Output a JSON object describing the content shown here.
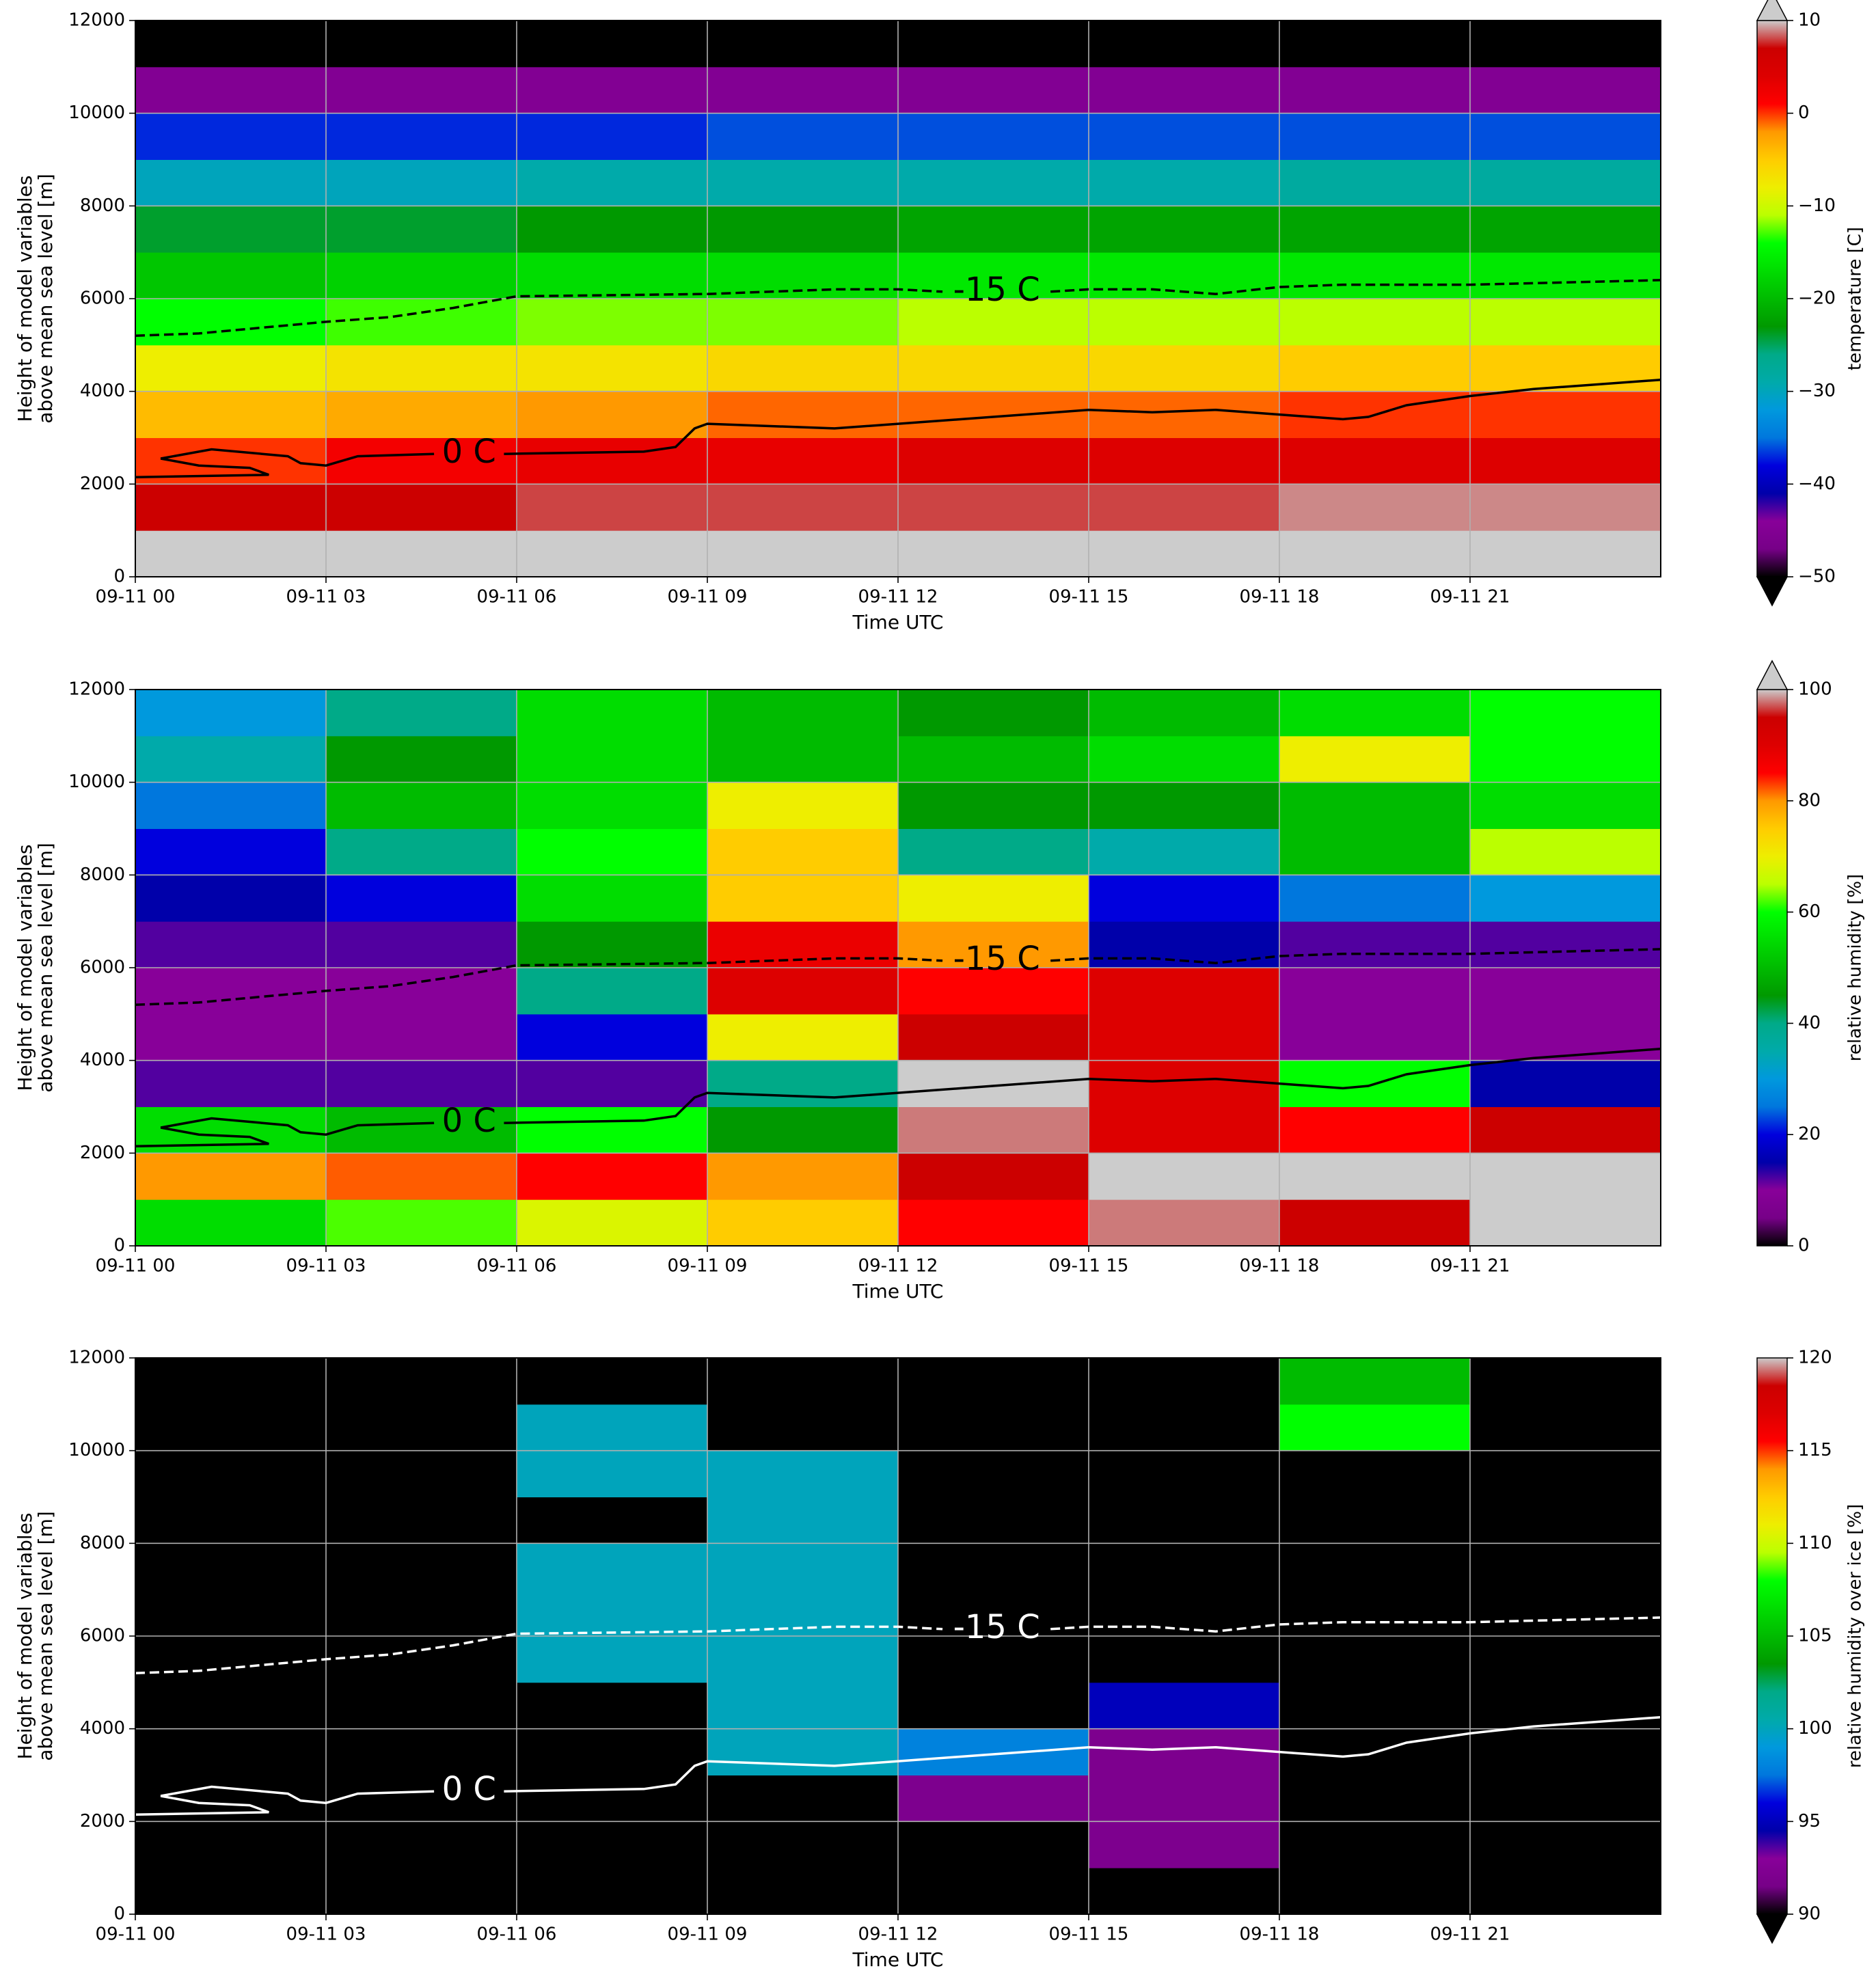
{
  "chart_data": [
    {
      "type": "heatmap",
      "xlabel": "Time UTC",
      "ylabel": [
        "Height of model variables",
        "above mean sea level [m]"
      ],
      "colorbar_label": "temperature [C]",
      "cmap": "nipy_spectral",
      "extend": "both",
      "clim": [
        -50,
        10
      ],
      "cticks": [
        {
          "value": -50,
          "label": "−50"
        },
        {
          "value": -40,
          "label": "−40"
        },
        {
          "value": -30,
          "label": "−30"
        },
        {
          "value": -20,
          "label": "−20"
        },
        {
          "value": -10,
          "label": "−10"
        },
        0,
        10
      ],
      "xlim": [
        0,
        24
      ],
      "ylim": [
        0,
        12000
      ],
      "grid": true,
      "xticks": [
        {
          "value": 0,
          "label": "09-11 00"
        },
        {
          "value": 3,
          "label": "09-11 03"
        },
        {
          "value": 6,
          "label": "09-11 06"
        },
        {
          "value": 9,
          "label": "09-11 09"
        },
        {
          "value": 12,
          "label": "09-11 12"
        },
        {
          "value": 15,
          "label": "09-11 15"
        },
        {
          "value": 18,
          "label": "09-11 18"
        },
        {
          "value": 21,
          "label": "09-11 21"
        }
      ],
      "yticks": [
        0,
        2000,
        4000,
        6000,
        8000,
        10000,
        12000
      ],
      "xbins": [
        0,
        3,
        6,
        9,
        12,
        15,
        18,
        21,
        24
      ],
      "ybins": [
        0,
        1000,
        2000,
        3000,
        4000,
        5000,
        6000,
        7000,
        8000,
        9000,
        10000,
        11000,
        12000
      ],
      "z": [
        [
          12,
          12,
          12,
          12,
          12,
          12,
          12,
          12
        ],
        [
          7,
          7,
          8,
          8,
          8,
          8,
          9,
          9
        ],
        [
          0,
          2,
          3,
          3,
          4,
          4,
          4,
          4
        ],
        [
          -4,
          -3,
          -2,
          -1,
          -1,
          -1,
          0,
          0
        ],
        [
          -8,
          -7,
          -7,
          -6,
          -6,
          -6,
          -5,
          -5
        ],
        [
          -14,
          -13,
          -12,
          -12,
          -11,
          -11,
          -11,
          -11
        ],
        [
          -19,
          -18,
          -17,
          -17,
          -16,
          -16,
          -16,
          -16
        ],
        [
          -24,
          -24,
          -23,
          -23,
          -22,
          -22,
          -22,
          -22
        ],
        [
          -30,
          -30,
          -29,
          -29,
          -29,
          -29,
          -28,
          -28
        ],
        [
          -37,
          -37,
          -37,
          -36,
          -36,
          -36,
          -36,
          -36
        ],
        [
          -45,
          -45,
          -45,
          -45,
          -45,
          -45,
          -45,
          -45
        ],
        [
          -53,
          -53,
          -53,
          -53,
          -53,
          -53,
          -53,
          -53
        ]
      ],
      "contours": [
        {
          "label": "0 C",
          "color": "#000000",
          "style": "solid",
          "x": [
            0,
            2.1,
            1.8,
            1,
            0.4,
            1.2,
            2.4,
            2.6,
            3,
            3.5,
            4.7,
            null,
            5.8,
            8,
            8.5,
            8.8,
            9,
            11,
            13,
            15,
            16,
            17,
            18,
            19,
            19.4,
            20,
            21,
            22,
            24
          ],
          "y": [
            2150,
            2200,
            2350,
            2400,
            2550,
            2750,
            2600,
            2450,
            2400,
            2600,
            2650,
            null,
            2650,
            2700,
            2800,
            3200,
            3300,
            3200,
            3400,
            3600,
            3550,
            3600,
            3500,
            3400,
            3450,
            3700,
            3900,
            4050,
            4250
          ]
        },
        {
          "label": "-15 C",
          "color": "#000000",
          "style": "dashed",
          "x": [
            0,
            1,
            3,
            4,
            5,
            6,
            9,
            11,
            12,
            12.7,
            null,
            14.4,
            15,
            16,
            17,
            18,
            19,
            21,
            24
          ],
          "y": [
            5200,
            5250,
            5500,
            5600,
            5800,
            6050,
            6100,
            6200,
            6200,
            6150,
            null,
            6150,
            6200,
            6200,
            6100,
            6250,
            6300,
            6300,
            6400
          ]
        }
      ]
    },
    {
      "type": "heatmap",
      "xlabel": "Time UTC",
      "ylabel": [
        "Height of model variables",
        "above mean sea level [m]"
      ],
      "colorbar_label": "relative humidity [%]",
      "cmap": "nipy_spectral",
      "extend": "max",
      "clim": [
        0,
        100
      ],
      "cticks": [
        0,
        20,
        40,
        60,
        80,
        100
      ],
      "xlim": [
        0,
        24
      ],
      "ylim": [
        0,
        12000
      ],
      "grid": true,
      "xticks": [
        {
          "value": 0,
          "label": "09-11 00"
        },
        {
          "value": 3,
          "label": "09-11 03"
        },
        {
          "value": 6,
          "label": "09-11 06"
        },
        {
          "value": 9,
          "label": "09-11 09"
        },
        {
          "value": 12,
          "label": "09-11 12"
        },
        {
          "value": 15,
          "label": "09-11 15"
        },
        {
          "value": 18,
          "label": "09-11 18"
        },
        {
          "value": 21,
          "label": "09-11 21"
        }
      ],
      "yticks": [
        0,
        2000,
        4000,
        6000,
        8000,
        10000,
        12000
      ],
      "xbins": [
        0,
        3,
        6,
        9,
        12,
        15,
        18,
        21,
        24
      ],
      "ybins": [
        0,
        1000,
        2000,
        3000,
        4000,
        5000,
        6000,
        7000,
        8000,
        9000,
        10000,
        11000,
        12000
      ],
      "z": [
        [
          55,
          62,
          68,
          75,
          85,
          98,
          95,
          100
        ],
        [
          80,
          82,
          85,
          80,
          95,
          100,
          100,
          100
        ],
        [
          55,
          50,
          60,
          45,
          98,
          90,
          85,
          95
        ],
        [
          12,
          12,
          12,
          40,
          100,
          90,
          60,
          15
        ],
        [
          10,
          10,
          20,
          70,
          95,
          90,
          10,
          10
        ],
        [
          10,
          10,
          40,
          90,
          85,
          90,
          10,
          10
        ],
        [
          12,
          12,
          45,
          88,
          80,
          15,
          12,
          12
        ],
        [
          15,
          20,
          55,
          75,
          70,
          20,
          25,
          30
        ],
        [
          20,
          40,
          60,
          75,
          40,
          35,
          50,
          65
        ],
        [
          25,
          50,
          55,
          70,
          45,
          45,
          50,
          55
        ],
        [
          35,
          45,
          55,
          50,
          50,
          55,
          70,
          60
        ],
        [
          30,
          40,
          55,
          50,
          45,
          50,
          55,
          60
        ]
      ],
      "contours": [
        {
          "label": "0 C",
          "color": "#000000",
          "style": "solid",
          "x": [
            0,
            2.1,
            1.8,
            1,
            0.4,
            1.2,
            2.4,
            2.6,
            3,
            3.5,
            4.7,
            null,
            5.8,
            8,
            8.5,
            8.8,
            9,
            11,
            13,
            15,
            16,
            17,
            18,
            19,
            19.4,
            20,
            21,
            22,
            24
          ],
          "y": [
            2150,
            2200,
            2350,
            2400,
            2550,
            2750,
            2600,
            2450,
            2400,
            2600,
            2650,
            null,
            2650,
            2700,
            2800,
            3200,
            3300,
            3200,
            3400,
            3600,
            3550,
            3600,
            3500,
            3400,
            3450,
            3700,
            3900,
            4050,
            4250
          ]
        },
        {
          "label": "-15 C",
          "color": "#000000",
          "style": "dashed",
          "x": [
            0,
            1,
            3,
            4,
            5,
            6,
            9,
            11,
            12,
            12.7,
            null,
            14.4,
            15,
            16,
            17,
            18,
            19,
            21,
            24
          ],
          "y": [
            5200,
            5250,
            5500,
            5600,
            5800,
            6050,
            6100,
            6200,
            6200,
            6150,
            null,
            6150,
            6200,
            6200,
            6100,
            6250,
            6300,
            6300,
            6400
          ]
        }
      ]
    },
    {
      "type": "heatmap",
      "xlabel": "Time UTC",
      "ylabel": [
        "Height of model variables",
        "above mean sea level [m]"
      ],
      "colorbar_label": "relative humidity over ice [%]",
      "cmap": "nipy_spectral",
      "extend": "min",
      "clim": [
        90,
        120
      ],
      "cticks": [
        90,
        95,
        100,
        105,
        110,
        115,
        120
      ],
      "xlim": [
        0,
        24
      ],
      "ylim": [
        0,
        12000
      ],
      "grid": true,
      "xticks": [
        {
          "value": 0,
          "label": "09-11 00"
        },
        {
          "value": 3,
          "label": "09-11 03"
        },
        {
          "value": 6,
          "label": "09-11 06"
        },
        {
          "value": 9,
          "label": "09-11 09"
        },
        {
          "value": 12,
          "label": "09-11 12"
        },
        {
          "value": 15,
          "label": "09-11 15"
        },
        {
          "value": 18,
          "label": "09-11 18"
        },
        {
          "value": 21,
          "label": "09-11 21"
        }
      ],
      "yticks": [
        0,
        2000,
        4000,
        6000,
        8000,
        10000,
        12000
      ],
      "xbins": [
        0,
        3,
        6,
        9,
        12,
        15,
        18,
        21,
        24
      ],
      "ybins": [
        0,
        1000,
        2000,
        3000,
        4000,
        5000,
        6000,
        7000,
        8000,
        9000,
        10000,
        11000,
        12000
      ],
      "z": [
        [
          80,
          80,
          80,
          80,
          80,
          80,
          80,
          80
        ],
        [
          80,
          80,
          80,
          80,
          80,
          92,
          90,
          80
        ],
        [
          80,
          80,
          80,
          80,
          92,
          92,
          80,
          80
        ],
        [
          80,
          80,
          80,
          100,
          98,
          92,
          80,
          80
        ],
        [
          80,
          80,
          80,
          100,
          80,
          95,
          80,
          80
        ],
        [
          80,
          80,
          100,
          100,
          80,
          80,
          80,
          80
        ],
        [
          80,
          80,
          100,
          100,
          80,
          80,
          80,
          80
        ],
        [
          80,
          80,
          100,
          100,
          80,
          80,
          80,
          80
        ],
        [
          80,
          80,
          80,
          100,
          80,
          80,
          80,
          80
        ],
        [
          80,
          80,
          100,
          100,
          80,
          80,
          80,
          80
        ],
        [
          80,
          80,
          100,
          80,
          80,
          80,
          108,
          80
        ],
        [
          80,
          80,
          80,
          80,
          80,
          80,
          105,
          80
        ]
      ],
      "contours": [
        {
          "label": "0 C",
          "color": "#ffffff",
          "style": "solid",
          "x": [
            0,
            2.1,
            1.8,
            1,
            0.4,
            1.2,
            2.4,
            2.6,
            3,
            3.5,
            4.7,
            null,
            5.8,
            8,
            8.5,
            8.8,
            9,
            11,
            13,
            15,
            16,
            17,
            18,
            19,
            19.4,
            20,
            21,
            22,
            24
          ],
          "y": [
            2150,
            2200,
            2350,
            2400,
            2550,
            2750,
            2600,
            2450,
            2400,
            2600,
            2650,
            null,
            2650,
            2700,
            2800,
            3200,
            3300,
            3200,
            3400,
            3600,
            3550,
            3600,
            3500,
            3400,
            3450,
            3700,
            3900,
            4050,
            4250
          ]
        },
        {
          "label": "-15 C",
          "color": "#ffffff",
          "style": "dashed",
          "x": [
            0,
            1,
            3,
            4,
            5,
            6,
            9,
            11,
            12,
            12.7,
            null,
            14.4,
            15,
            16,
            17,
            18,
            19,
            21,
            24
          ],
          "y": [
            5200,
            5250,
            5500,
            5600,
            5800,
            6050,
            6100,
            6200,
            6200,
            6150,
            null,
            6150,
            6200,
            6200,
            6100,
            6250,
            6300,
            6300,
            6400
          ]
        }
      ]
    }
  ]
}
